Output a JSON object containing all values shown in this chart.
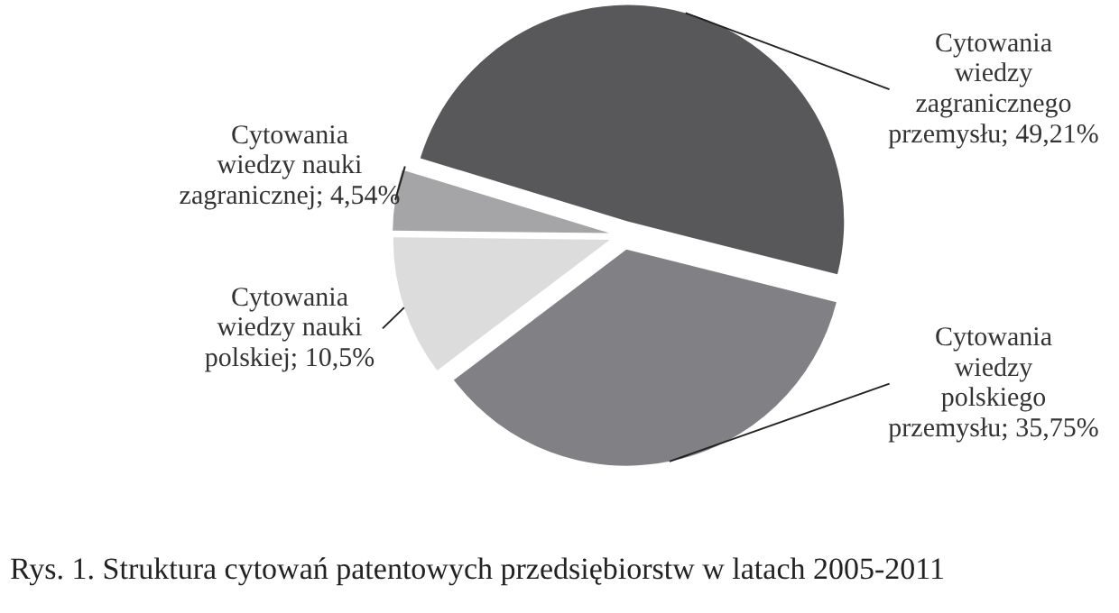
{
  "chart_data": {
    "type": "pie",
    "title": "Rys. 1. Struktura cytowań patentowych przedsiębiorstw w latach 2005-2011",
    "categories": [
      "Cytowania wiedzy zagranicznego przemysłu",
      "Cytowania wiedzy polskiego przemysłu",
      "Cytowania wiedzy nauki polskiej",
      "Cytowania wiedzy nauki zagranicznej"
    ],
    "values": [
      49.21,
      35.75,
      10.5,
      4.54
    ],
    "value_labels": [
      "49,21%",
      "35,75%",
      "10,5%",
      "4,54%"
    ],
    "colors": [
      "#58585a",
      "#818185",
      "#dcdcdc",
      "#a5a5a8"
    ]
  }
}
